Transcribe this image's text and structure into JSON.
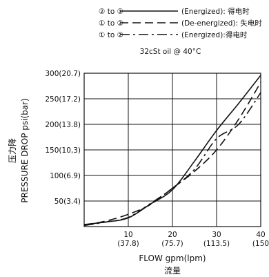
{
  "chart_data": {
    "type": "line",
    "legend": [
      {
        "key": "② to ①",
        "state": "(Energized): 得电时",
        "style": "solid"
      },
      {
        "key": "① to ②",
        "state": "(De-energized): 失电时",
        "style": "dashed"
      },
      {
        "key": "① to ②",
        "state": "(Energized):得电时",
        "style": "dashdot"
      }
    ],
    "subtitle": "32cSt  oil @ 40°C",
    "ylabel_cn": "压力降",
    "ylabel": "PRESSURE DROP psi(bar)",
    "xlabel": "FLOW gpm(lpm)",
    "xlabel_cn": "流量",
    "xlim": [
      0,
      40
    ],
    "ylim": [
      0,
      300
    ],
    "xticks": [
      {
        "value": 10,
        "line1": "10",
        "line2": "(37.8)"
      },
      {
        "value": 20,
        "line1": "20",
        "line2": "(75.7)"
      },
      {
        "value": 30,
        "line1": "30",
        "line2": "(113.5)"
      },
      {
        "value": 40,
        "line1": "40",
        "line2": "(150"
      }
    ],
    "yticks": [
      {
        "value": 50,
        "label": "50(3.4)"
      },
      {
        "value": 100,
        "label": "100(6.9)"
      },
      {
        "value": 150,
        "label": "150(10,3)"
      },
      {
        "value": 200,
        "label": "200(13.8)"
      },
      {
        "value": 250,
        "label": "250(17.2)"
      },
      {
        "value": 300,
        "label": "300(20.7)"
      }
    ],
    "grid": true,
    "series": [
      {
        "name": "② to ① (Energized)",
        "style": "solid",
        "x": [
          0,
          5,
          10,
          15,
          20,
          25,
          30,
          35,
          40
        ],
        "y": [
          4,
          9,
          17,
          44,
          72,
          128,
          188,
          241,
          296
        ]
      },
      {
        "name": "① to ② (De-energized)",
        "style": "dashed",
        "x": [
          0,
          5,
          10,
          15,
          20,
          25,
          30,
          35,
          40
        ],
        "y": [
          3,
          11,
          24,
          43,
          75,
          108,
          150,
          210,
          282
        ]
      },
      {
        "name": "① to ② (Energized)",
        "style": "dashdot",
        "x": [
          0,
          5,
          10,
          15,
          20,
          25,
          30,
          35,
          40
        ],
        "y": [
          2,
          9,
          18,
          45,
          75,
          112,
          172,
          200,
          262
        ]
      }
    ]
  }
}
